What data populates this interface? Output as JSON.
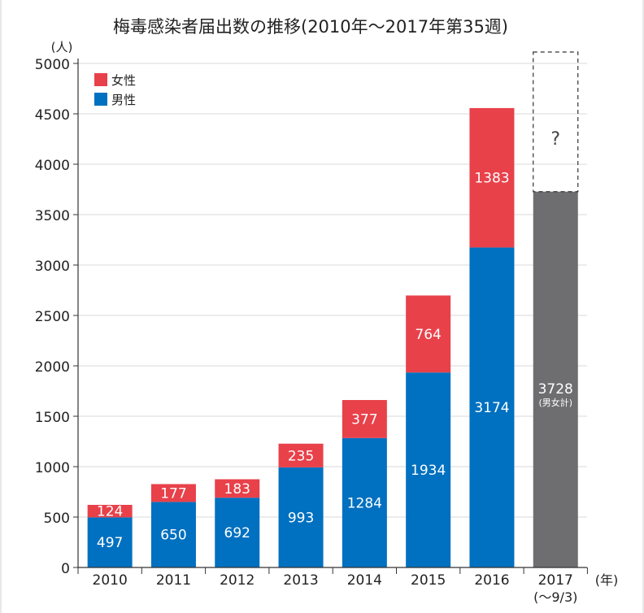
{
  "chart_data": {
    "type": "bar",
    "stacked": true,
    "title": "梅毒感染者届出数の推移(2010年〜2017年第35週)",
    "y_unit": "(人)",
    "x_unit": "(年)",
    "ylim": [
      0,
      5000
    ],
    "y_ticks": [
      "0",
      "500",
      "1000",
      "1500",
      "2000",
      "2500",
      "3000",
      "3500",
      "4000",
      "4500",
      "5000"
    ],
    "categories": [
      "2010",
      "2011",
      "2012",
      "2013",
      "2014",
      "2015",
      "2016",
      "2017"
    ],
    "category_sublabels": [
      "",
      "",
      "",
      "",
      "",
      "",
      "",
      "(〜9/3)"
    ],
    "series": [
      {
        "name": "男性",
        "color": "#0070c0",
        "values": [
          497,
          650,
          692,
          993,
          1284,
          1934,
          3174,
          null
        ]
      },
      {
        "name": "女性",
        "color": "#e8414a",
        "values": [
          124,
          177,
          183,
          235,
          377,
          764,
          1383,
          null
        ]
      }
    ],
    "legend_order": [
      "女性",
      "男性"
    ],
    "legend_position": "top-left",
    "total_bar": {
      "category": "2017",
      "value": 3728,
      "label": "3728",
      "sublabel": "(男女計)",
      "color": "#6e6d70",
      "unknown_label": "?",
      "unknown_top": 5000
    },
    "grid": true,
    "grid_color": "#d9d9d9"
  }
}
